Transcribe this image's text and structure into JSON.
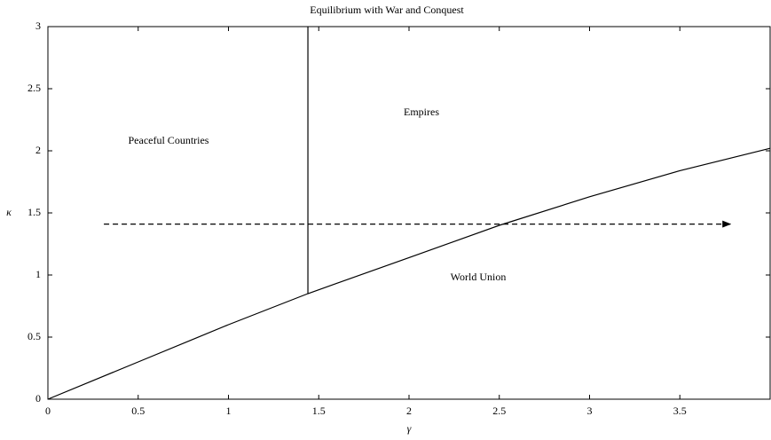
{
  "chart_data": {
    "type": "line",
    "title": "Equilibrium with War and Conquest",
    "x_label": "γ",
    "y_label": "κ",
    "xlim": [
      0,
      4
    ],
    "ylim": [
      0,
      3
    ],
    "xticks": [
      0,
      0.5,
      1,
      1.5,
      2,
      2.5,
      3,
      3.5
    ],
    "yticks": [
      0,
      0.5,
      1,
      1.5,
      2,
      2.5,
      3
    ],
    "grid": false,
    "annotations": [
      "Peaceful Countries",
      "Empires",
      "World Union"
    ],
    "series": [
      {
        "color": "#000000",
        "x": [
          0,
          0.5,
          1,
          1.44,
          2,
          2.5,
          3,
          3.5,
          4
        ],
        "values": [
          0,
          0.3,
          0.6,
          0.85,
          1.14,
          1.4,
          1.63,
          1.84,
          2.02
        ]
      },
      {
        "color": "#000000",
        "x": [
          1.44,
          1.44
        ],
        "values": [
          0.85,
          3
        ]
      },
      {
        "color": "#000000",
        "dashed": true,
        "arrow": true,
        "x": [
          0.31,
          3.78
        ],
        "values": [
          1.41,
          1.41
        ]
      }
    ]
  }
}
